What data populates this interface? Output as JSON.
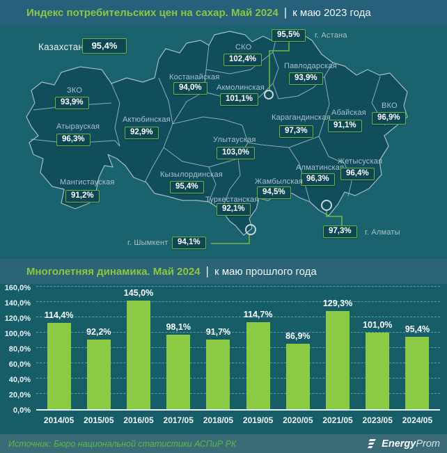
{
  "header": {
    "title": "Индекс потребительских цен на сахар. Май 2024",
    "divider": "|",
    "subtitle": "к маю 2023 года"
  },
  "map": {
    "country": {
      "name": "Казахстан",
      "value": "95,4%"
    },
    "regions": [
      {
        "id": "astana",
        "name": "г. Астана",
        "value": "95,5%"
      },
      {
        "id": "sko",
        "name": "СКО",
        "value": "102,4%"
      },
      {
        "id": "pavlodar",
        "name": "Павлодарская",
        "value": "93,9%"
      },
      {
        "id": "kostanay",
        "name": "Костанайская",
        "value": "94,0%"
      },
      {
        "id": "akmola",
        "name": "Акмолинская",
        "value": "101,1%"
      },
      {
        "id": "zko",
        "name": "ЗКО",
        "value": "93,9%"
      },
      {
        "id": "aktobe",
        "name": "Актюбинская",
        "value": "92,9%"
      },
      {
        "id": "atyrau",
        "name": "Атырауская",
        "value": "96,3%"
      },
      {
        "id": "karaganda",
        "name": "Карагандинская",
        "value": "97,3%"
      },
      {
        "id": "abay",
        "name": "Абайская",
        "value": "91,1%"
      },
      {
        "id": "vko",
        "name": "ВКО",
        "value": "96,9%"
      },
      {
        "id": "ulytau",
        "name": "Улытауская",
        "value": "103,0%"
      },
      {
        "id": "mangystau",
        "name": "Мангистауская",
        "value": "91,2%"
      },
      {
        "id": "kyzylorda",
        "name": "Кызылординская",
        "value": "95,4%"
      },
      {
        "id": "almaty_region",
        "name": "Алматинская",
        "value": "96,3%"
      },
      {
        "id": "zhetysu",
        "name": "Жетысуская",
        "value": "96,4%"
      },
      {
        "id": "zhambyl",
        "name": "Жамбылская",
        "value": "94,5%"
      },
      {
        "id": "turkestan",
        "name": "Туркестанская",
        "value": "92,1%"
      },
      {
        "id": "shymkent",
        "name": "г. Шымкент",
        "value": "94,1%"
      },
      {
        "id": "almaty_city",
        "name": "г. Алматы",
        "value": "97,3%"
      }
    ]
  },
  "chart_header": {
    "title": "Многолетняя динамика. Май 2024",
    "divider": "|",
    "subtitle": "к маю прошлого года"
  },
  "chart_data": {
    "type": "bar",
    "categories": [
      "2014/05",
      "2015/05",
      "2016/05",
      "2017/05",
      "2018/05",
      "2019/05",
      "2020/05",
      "2021/05",
      "2023/05",
      "2024/05"
    ],
    "values": [
      114.4,
      92.2,
      145.0,
      98.1,
      91.7,
      114.7,
      86.9,
      129.3,
      101.0,
      95.4
    ],
    "value_labels": [
      "114,4%",
      "92,2%",
      "145,0%",
      "98,1%",
      "91,7%",
      "114,7%",
      "86,9%",
      "129,3%",
      "101,0%",
      "95,4%"
    ],
    "y_ticks": [
      160,
      140,
      120,
      100,
      80,
      60,
      40,
      20,
      0
    ],
    "y_tick_labels": [
      "160,0%",
      "140,0%",
      "120,0%",
      "100,0%",
      "80,0%",
      "60,0%",
      "40,0%",
      "20,0%",
      "0,0%"
    ],
    "ylim": [
      0,
      160
    ],
    "grid": "dashed horizontal",
    "legend": "none",
    "bar_color": "#8BCB44"
  },
  "footer": {
    "source": "Источник: Бюро национальной статистики АСПиР РК",
    "logo_bold": "Energy",
    "logo_light": "Prom"
  },
  "colors": {
    "accent_green": "#8DC63F",
    "bar_green": "#8BCB44",
    "badge_border": "#6FB243",
    "badge_fill": "#0D4754",
    "land_fill": "#114E5B",
    "map_border": "#A3BCC6",
    "background": "#175D68",
    "footer_source_green": "#55BB47"
  }
}
